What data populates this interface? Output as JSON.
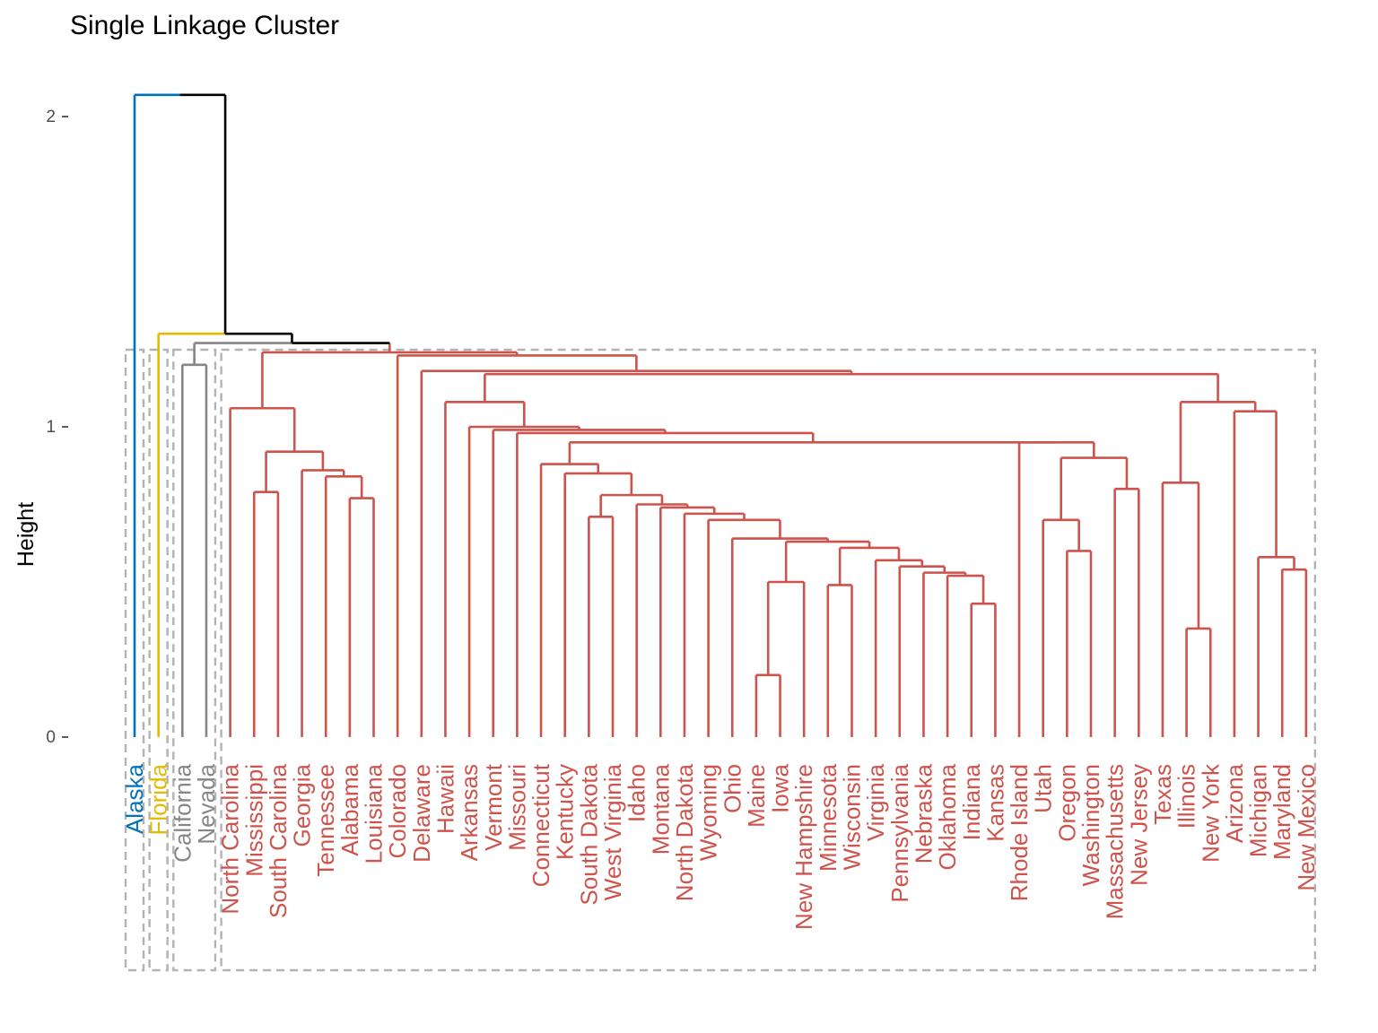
{
  "chart_data": {
    "type": "dendrogram",
    "title": "Single Linkage Cluster",
    "ylabel": "Height",
    "xlabel": "",
    "ylim": [
      0,
      2.1
    ],
    "yticks": [
      0,
      1,
      2
    ],
    "grid": false,
    "colors": {
      "alaska": "#0072bd",
      "florida": "#e7b800",
      "california_nevada": "#868686",
      "main": "#cd534c",
      "root": "#000000",
      "rect": "#b3b3b3"
    },
    "leaves": [
      {
        "label": "Alaska",
        "group": "alaska"
      },
      {
        "label": "Florida",
        "group": "florida"
      },
      {
        "label": "California",
        "group": "california_nevada"
      },
      {
        "label": "Nevada",
        "group": "california_nevada"
      },
      {
        "label": "North Carolina",
        "group": "main"
      },
      {
        "label": "Mississippi",
        "group": "main"
      },
      {
        "label": "South Carolina",
        "group": "main"
      },
      {
        "label": "Georgia",
        "group": "main"
      },
      {
        "label": "Tennessee",
        "group": "main"
      },
      {
        "label": "Alabama",
        "group": "main"
      },
      {
        "label": "Louisiana",
        "group": "main"
      },
      {
        "label": "Colorado",
        "group": "main"
      },
      {
        "label": "Delaware",
        "group": "main"
      },
      {
        "label": "Hawaii",
        "group": "main"
      },
      {
        "label": "Arkansas",
        "group": "main"
      },
      {
        "label": "Vermont",
        "group": "main"
      },
      {
        "label": "Missouri",
        "group": "main"
      },
      {
        "label": "Connecticut",
        "group": "main"
      },
      {
        "label": "Kentucky",
        "group": "main"
      },
      {
        "label": "South Dakota",
        "group": "main"
      },
      {
        "label": "West Virginia",
        "group": "main"
      },
      {
        "label": "Idaho",
        "group": "main"
      },
      {
        "label": "Montana",
        "group": "main"
      },
      {
        "label": "North Dakota",
        "group": "main"
      },
      {
        "label": "Wyoming",
        "group": "main"
      },
      {
        "label": "Ohio",
        "group": "main"
      },
      {
        "label": "Maine",
        "group": "main"
      },
      {
        "label": "Iowa",
        "group": "main"
      },
      {
        "label": "New Hampshire",
        "group": "main"
      },
      {
        "label": "Minnesota",
        "group": "main"
      },
      {
        "label": "Wisconsin",
        "group": "main"
      },
      {
        "label": "Virginia",
        "group": "main"
      },
      {
        "label": "Pennsylvania",
        "group": "main"
      },
      {
        "label": "Nebraska",
        "group": "main"
      },
      {
        "label": "Oklahoma",
        "group": "main"
      },
      {
        "label": "Indiana",
        "group": "main"
      },
      {
        "label": "Kansas",
        "group": "main"
      },
      {
        "label": "Rhode Island",
        "group": "main"
      },
      {
        "label": "Utah",
        "group": "main"
      },
      {
        "label": "Oregon",
        "group": "main"
      },
      {
        "label": "Washington",
        "group": "main"
      },
      {
        "label": "Massachusetts",
        "group": "main"
      },
      {
        "label": "New Jersey",
        "group": "main"
      },
      {
        "label": "Texas",
        "group": "main"
      },
      {
        "label": "Illinois",
        "group": "main"
      },
      {
        "label": "New York",
        "group": "main"
      },
      {
        "label": "Arizona",
        "group": "main"
      },
      {
        "label": "Michigan",
        "group": "main"
      },
      {
        "label": "Maryland",
        "group": "main"
      },
      {
        "label": "New Mexico",
        "group": "main"
      }
    ],
    "merges": [
      {
        "a": "Maine",
        "b": "Iowa",
        "height": 0.2
      },
      {
        "a": "Illinois",
        "b": "New York",
        "height": 0.35
      },
      {
        "a": "Indiana",
        "b": "Kansas",
        "height": 0.43
      },
      {
        "a": "Minnesota",
        "b": "Wisconsin",
        "height": 0.49
      },
      {
        "a": "Maine|Iowa",
        "b": "New Hampshire",
        "height": 0.5
      },
      {
        "a": "Oklahoma",
        "b": "Indiana|Kansas",
        "height": 0.52
      },
      {
        "a": "Maryland",
        "b": "New Mexico",
        "height": 0.54
      },
      {
        "a": "Nebraska",
        "b": "Oklahoma|Indiana|Kansas",
        "height": 0.53
      },
      {
        "a": "Pennsylvania",
        "b": "Nebraska+",
        "height": 0.55
      },
      {
        "a": "Michigan",
        "b": "Maryland|New Mexico",
        "height": 0.58
      },
      {
        "a": "Virginia",
        "b": "Pennsylvania+",
        "height": 0.57
      },
      {
        "a": "Oregon",
        "b": "Washington",
        "height": 0.6
      },
      {
        "a": "Minnesota|Wisconsin",
        "b": "Virginia+",
        "height": 0.61
      },
      {
        "a": "Maine|Iowa|New Hampshire",
        "b": "Minnesota+",
        "height": 0.63
      },
      {
        "a": "Ohio",
        "b": "Maine+",
        "height": 0.64
      },
      {
        "a": "Utah",
        "b": "Oregon|Washington",
        "height": 0.7
      },
      {
        "a": "Wyoming",
        "b": "Ohio+",
        "height": 0.7
      },
      {
        "a": "South Dakota",
        "b": "West Virginia",
        "height": 0.71
      },
      {
        "a": "North Dakota",
        "b": "Wyoming+",
        "height": 0.72
      },
      {
        "a": "Montana",
        "b": "North Dakota+",
        "height": 0.74
      },
      {
        "a": "Idaho",
        "b": "Montana+",
        "height": 0.75
      },
      {
        "a": "Alabama",
        "b": "Louisiana",
        "height": 0.77
      },
      {
        "a": "South Dakota|West Virginia",
        "b": "Idaho+",
        "height": 0.78
      },
      {
        "a": "Mississippi",
        "b": "South Carolina",
        "height": 0.79
      },
      {
        "a": "Massachusetts",
        "b": "New Jersey",
        "height": 0.8
      },
      {
        "a": "Texas",
        "b": "Illinois|New York",
        "height": 0.82
      },
      {
        "a": "Tennessee",
        "b": "Alabama|Louisiana",
        "height": 0.84
      },
      {
        "a": "Kentucky",
        "b": "South Dakota+",
        "height": 0.85
      },
      {
        "a": "Georgia",
        "b": "Tennessee+",
        "height": 0.86
      },
      {
        "a": "Connecticut",
        "b": "Kentucky+",
        "height": 0.88
      },
      {
        "a": "Utah+",
        "b": "Massachusetts|New Jersey",
        "height": 0.9
      },
      {
        "a": "Mississippi|South Carolina",
        "b": "Georgia+",
        "height": 0.92
      },
      {
        "a": "Rhode Island",
        "b": "Utah+",
        "height": 0.95
      },
      {
        "a": "Connecticut+",
        "b": "Rhode Island+",
        "height": 0.95
      },
      {
        "a": "Missouri",
        "b": "Connecticut+",
        "height": 0.98
      },
      {
        "a": "Vermont",
        "b": "Missouri+",
        "height": 0.99
      },
      {
        "a": "Arkansas",
        "b": "Vermont+",
        "height": 1.0
      },
      {
        "a": "Arizona",
        "b": "Michigan+",
        "height": 1.05
      },
      {
        "a": "North Carolina",
        "b": "Mississippi+",
        "height": 1.06
      },
      {
        "a": "Texas+",
        "b": "Arizona+",
        "height": 1.08
      },
      {
        "a": "Hawaii",
        "b": "Arkansas+",
        "height": 1.08
      },
      {
        "a": "Hawaii+",
        "b": "Texas+",
        "height": 1.17
      },
      {
        "a": "Delaware",
        "b": "Hawaii+",
        "height": 1.18
      },
      {
        "a": "Colorado",
        "b": "Delaware+",
        "height": 1.23
      },
      {
        "a": "North Carolina+",
        "b": "Colorado+",
        "height": 1.24
      },
      {
        "a": "California",
        "b": "Nevada",
        "height": 1.2
      },
      {
        "a": "California|Nevada",
        "b": "North Carolina+",
        "height": 1.27
      },
      {
        "a": "Florida",
        "b": "California+",
        "height": 1.3
      },
      {
        "a": "Alaska",
        "b": "Florida+",
        "height": 2.07
      }
    ],
    "cluster_boxes": [
      [
        "Alaska"
      ],
      [
        "Florida"
      ],
      [
        "California",
        "Nevada"
      ],
      [
        "North Carolina",
        "New Mexico"
      ]
    ]
  }
}
